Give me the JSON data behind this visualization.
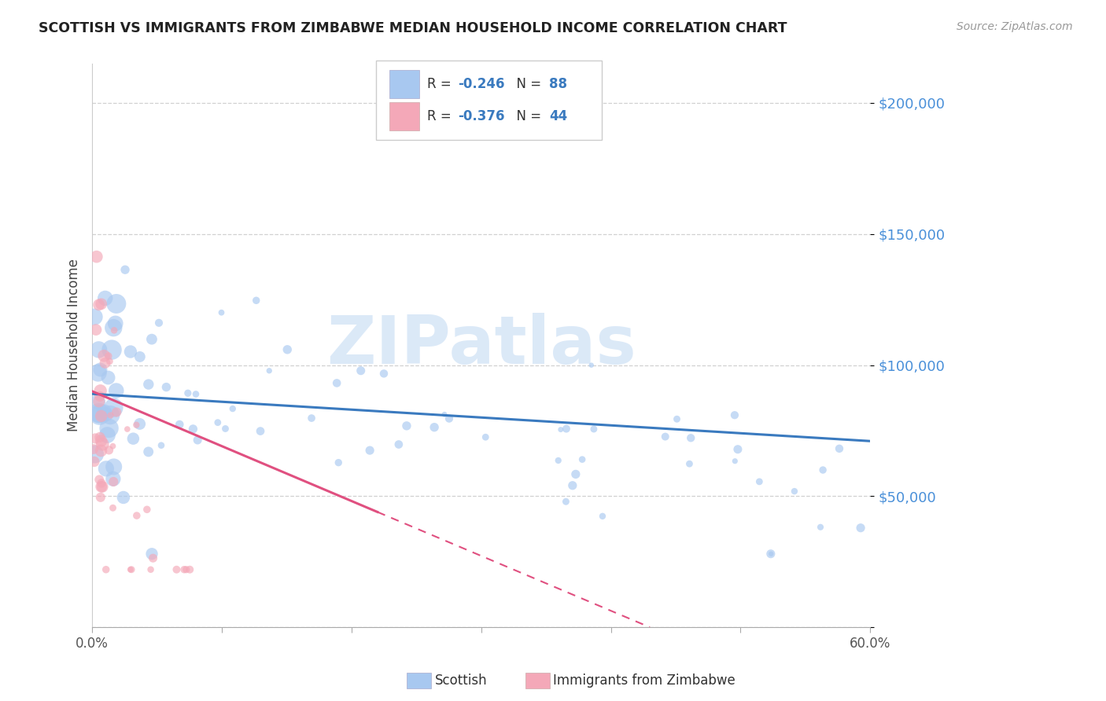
{
  "title": "SCOTTISH VS IMMIGRANTS FROM ZIMBABWE MEDIAN HOUSEHOLD INCOME CORRELATION CHART",
  "source": "Source: ZipAtlas.com",
  "ylabel": "Median Household Income",
  "blue_scatter_color": "#a8c8f0",
  "pink_scatter_color": "#f4a8b8",
  "blue_line_color": "#3a7abf",
  "pink_line_color": "#e05080",
  "blue_label_color": "#3a7abf",
  "pink_label_color": "#e05080",
  "R_text_color": "#555555",
  "watermark_color": "#cce0f5",
  "watermark_text": "ZIPatlas",
  "title_color": "#222222",
  "source_color": "#999999",
  "ytick_color": "#4a90d9",
  "xtick_color": "#555555",
  "xlim": [
    0.0,
    0.6
  ],
  "ylim": [
    0,
    215000
  ],
  "yticks": [
    0,
    50000,
    100000,
    150000,
    200000
  ],
  "ytick_labels": [
    "",
    "$50,000",
    "$100,000",
    "$150,000",
    "$200,000"
  ],
  "xticks": [
    0.0,
    0.1,
    0.2,
    0.3,
    0.4,
    0.5,
    0.6
  ],
  "legend_R_blue": "-0.246",
  "legend_N_blue": "88",
  "legend_R_pink": "-0.376",
  "legend_N_pink": "44",
  "bottom_legend_blue": "Scottish",
  "bottom_legend_pink": "Immigrants from Zimbabwe"
}
